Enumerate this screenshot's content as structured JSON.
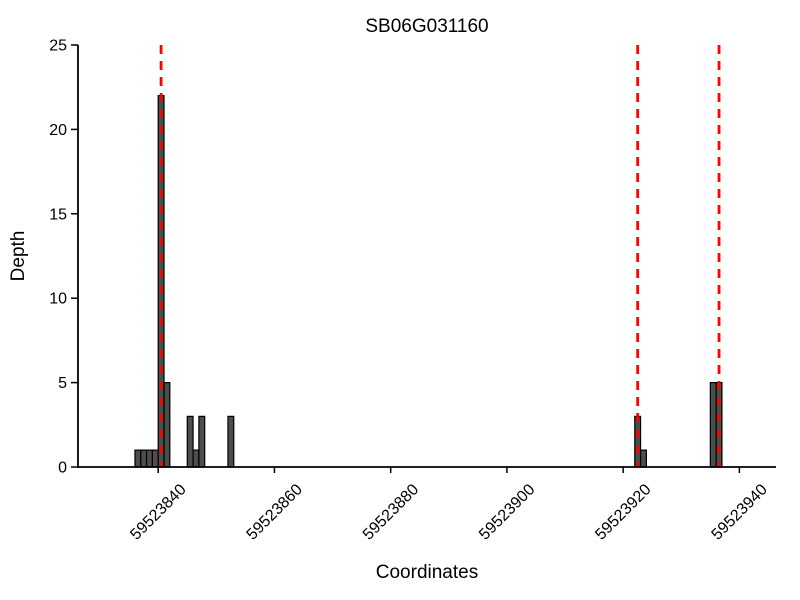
{
  "figure": {
    "background": "#ffffff"
  },
  "chart_data": {
    "type": "bar",
    "title": "SB06G031160",
    "xlabel": "Coordinates",
    "ylabel": "Depth",
    "xlim": [
      59523826.2,
      59523946.3
    ],
    "ylim": [
      0,
      25
    ],
    "grid": false,
    "legend": null,
    "bar_width": 1,
    "bar_color": "#4d4d4d",
    "bar_edge_color": "#000000",
    "x_ticks": [
      {
        "value": 59523840,
        "label": "59523840"
      },
      {
        "value": 59523860,
        "label": "59523860"
      },
      {
        "value": 59523880,
        "label": "59523880"
      },
      {
        "value": 59523900,
        "label": "59523900"
      },
      {
        "value": 59523920,
        "label": "59523920"
      },
      {
        "value": 59523940,
        "label": "59523940"
      }
    ],
    "y_ticks": [
      {
        "value": 0,
        "label": "0"
      },
      {
        "value": 5,
        "label": "5"
      },
      {
        "value": 10,
        "label": "10"
      },
      {
        "value": 15,
        "label": "15"
      },
      {
        "value": 20,
        "label": "20"
      },
      {
        "value": 25,
        "label": "25"
      }
    ],
    "bars": [
      {
        "x": 59523836,
        "depth": 1
      },
      {
        "x": 59523837,
        "depth": 1
      },
      {
        "x": 59523838,
        "depth": 1
      },
      {
        "x": 59523839,
        "depth": 1
      },
      {
        "x": 59523840,
        "depth": 22
      },
      {
        "x": 59523841,
        "depth": 5
      },
      {
        "x": 59523845,
        "depth": 3
      },
      {
        "x": 59523846,
        "depth": 1
      },
      {
        "x": 59523847,
        "depth": 3
      },
      {
        "x": 59523852,
        "depth": 3
      },
      {
        "x": 59523922,
        "depth": 3
      },
      {
        "x": 59523923,
        "depth": 1
      },
      {
        "x": 59523935,
        "depth": 5
      },
      {
        "x": 59523936,
        "depth": 5
      }
    ],
    "red_vlines": {
      "positions": [
        59523840.5,
        59523922.5,
        59523936.5
      ],
      "color": "#ff0000",
      "style": "dashed"
    }
  }
}
